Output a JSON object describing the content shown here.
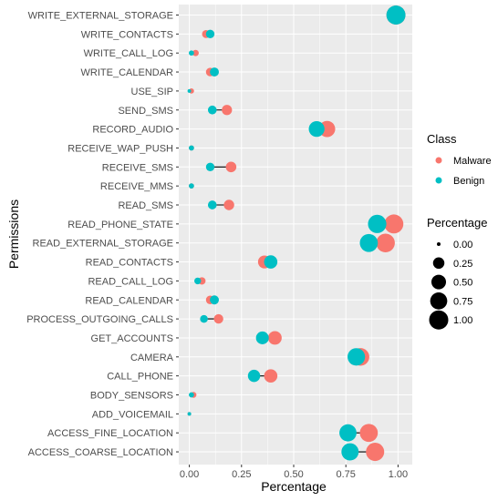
{
  "chart_data": {
    "type": "scatter",
    "xlabel": "Percentage",
    "ylabel": "Permissions",
    "xlim": [
      0,
      1
    ],
    "xticks": [
      "0.00",
      "0.25",
      "0.50",
      "0.75",
      "1.00"
    ],
    "grid": true,
    "legend_placement": "right",
    "categories": [
      "WRITE_EXTERNAL_STORAGE",
      "WRITE_CONTACTS",
      "WRITE_CALL_LOG",
      "WRITE_CALENDAR",
      "USE_SIP",
      "SEND_SMS",
      "RECORD_AUDIO",
      "RECEIVE_WAP_PUSH",
      "RECEIVE_SMS",
      "RECEIVE_MMS",
      "READ_SMS",
      "READ_PHONE_STATE",
      "READ_EXTERNAL_STORAGE",
      "READ_CONTACTS",
      "READ_CALL_LOG",
      "READ_CALENDAR",
      "PROCESS_OUTGOING_CALLS",
      "GET_ACCOUNTS",
      "CAMERA",
      "CALL_PHONE",
      "BODY_SENSORS",
      "ADD_VOICEMAIL",
      "ACCESS_FINE_LOCATION",
      "ACCESS_COARSE_LOCATION"
    ],
    "series": [
      {
        "name": "Malware",
        "color": "#F8766D",
        "values": [
          0.99,
          0.08,
          0.03,
          0.1,
          0.01,
          0.18,
          0.66,
          0.01,
          0.2,
          0.01,
          0.19,
          0.98,
          0.94,
          0.36,
          0.06,
          0.1,
          0.14,
          0.41,
          0.82,
          0.39,
          0.02,
          0.0,
          0.86,
          0.89
        ]
      },
      {
        "name": "Benign",
        "color": "#00BFC4",
        "values": [
          0.99,
          0.1,
          0.01,
          0.12,
          0.0,
          0.11,
          0.61,
          0.01,
          0.1,
          0.01,
          0.11,
          0.9,
          0.86,
          0.39,
          0.04,
          0.12,
          0.07,
          0.35,
          0.8,
          0.31,
          0.01,
          0.0,
          0.76,
          0.77
        ]
      }
    ],
    "legend": {
      "color_title": "Class",
      "size_title": "Percentage",
      "size_labels": [
        "0.00",
        "0.25",
        "0.50",
        "0.75",
        "1.00"
      ],
      "size_values": [
        0,
        0.25,
        0.5,
        0.75,
        1.0
      ]
    },
    "colors": {
      "panel": "#EBEBEB",
      "gridline": "#FFFFFF",
      "connector": "#000000"
    }
  }
}
